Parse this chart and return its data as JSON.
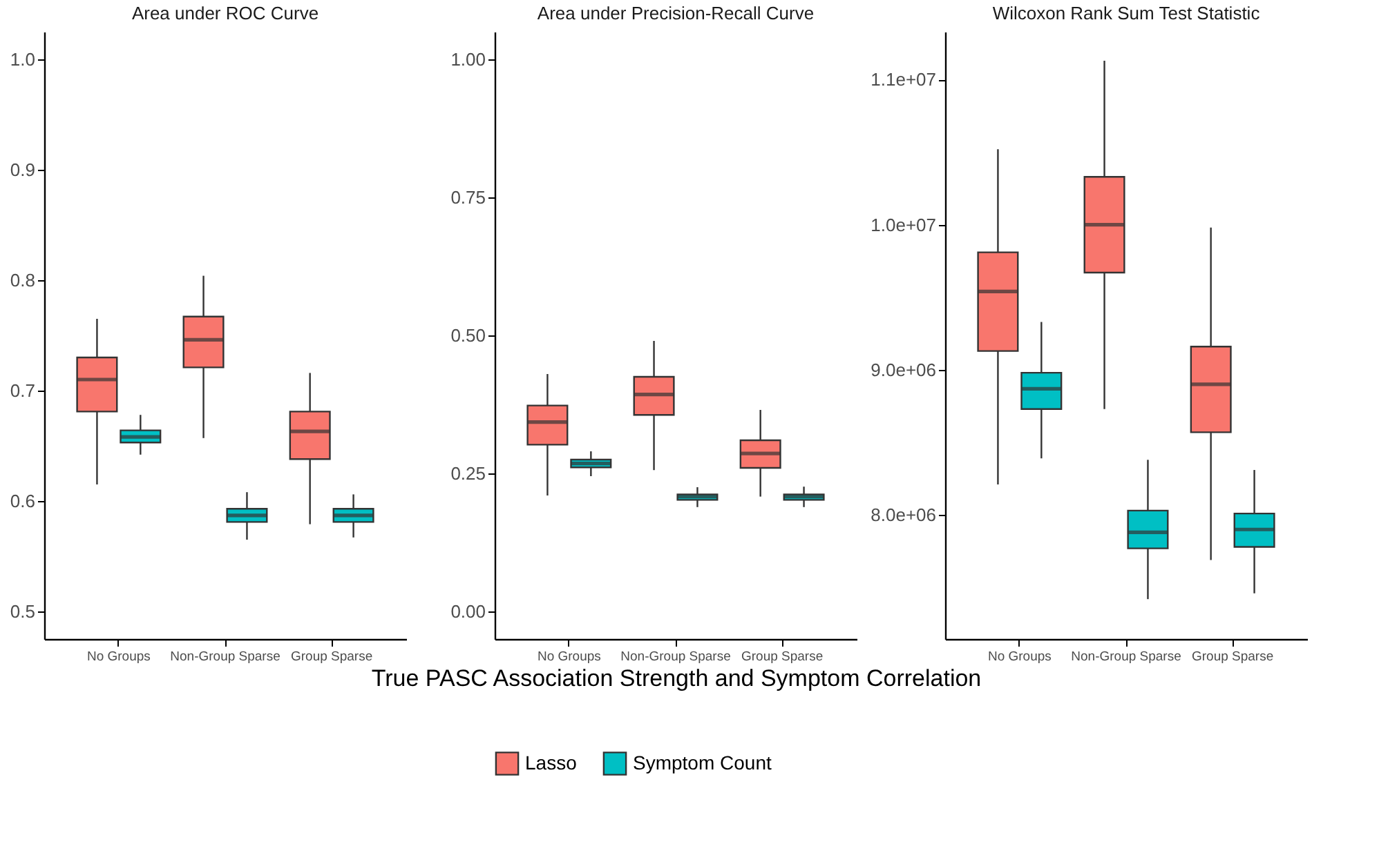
{
  "chart_data": [
    {
      "type": "box",
      "title": "Area under ROC Curve",
      "categories": [
        "No Groups",
        "Non-Group Sparse",
        "Group Sparse"
      ],
      "ylim": [
        0.475,
        1.025
      ],
      "yticks": [
        0.5,
        0.6,
        0.7,
        0.8,
        0.9,
        {
          "value": 1,
          "label": "1.0"
        }
      ],
      "series": [
        {
          "color": "#f8766d",
          "boxes": [
            {
              "low": 0.615,
              "q1": 0.681,
              "median": 0.71,
              "q3": 0.73,
              "high": 0.765
            },
            {
              "low": 0.657,
              "q1": 0.721,
              "median": 0.746,
              "q3": 0.767,
              "high": 0.804
            },
            {
              "low": 0.579,
              "q1": 0.638,
              "median": 0.663,
              "q3": 0.681,
              "high": 0.716
            }
          ]
        },
        {
          "color": "#00bfc4",
          "boxes": [
            {
              "low": 0.642,
              "q1": 0.653,
              "median": 0.658,
              "q3": 0.664,
              "high": 0.678
            },
            {
              "low": 0.565,
              "q1": 0.581,
              "median": 0.587,
              "q3": 0.593,
              "high": 0.608
            },
            {
              "low": 0.567,
              "q1": 0.581,
              "median": 0.587,
              "q3": 0.593,
              "high": 0.606
            }
          ]
        }
      ]
    },
    {
      "type": "box",
      "title": "Area under Precision-Recall Curve",
      "categories": [
        "No Groups",
        "Non-Group Sparse",
        "Group Sparse"
      ],
      "xlabel": "True PASC Association Strength and Symptom Correlation",
      "legend": "bottom",
      "ylim": [
        -0.05,
        1.05
      ],
      "yticks": [
        {
          "value": 0,
          "label": "0.00"
        },
        0.25,
        {
          "value": 0.5,
          "label": "0.50"
        },
        0.75,
        {
          "value": 1,
          "label": "1.00"
        }
      ],
      "series": [
        {
          "name": "Lasso",
          "color": "#f8766d",
          "boxes": [
            {
              "low": 0.21,
              "q1": 0.302,
              "median": 0.343,
              "q3": 0.373,
              "high": 0.43
            },
            {
              "low": 0.256,
              "q1": 0.356,
              "median": 0.393,
              "q3": 0.425,
              "high": 0.49
            },
            {
              "low": 0.208,
              "q1": 0.26,
              "median": 0.286,
              "q3": 0.31,
              "high": 0.365
            }
          ]
        },
        {
          "name": "Symptom Count",
          "color": "#00bfc4",
          "boxes": [
            {
              "low": 0.245,
              "q1": 0.261,
              "median": 0.268,
              "q3": 0.275,
              "high": 0.29
            },
            {
              "low": 0.189,
              "q1": 0.202,
              "median": 0.208,
              "q3": 0.212,
              "high": 0.225
            },
            {
              "low": 0.189,
              "q1": 0.202,
              "median": 0.208,
              "q3": 0.212,
              "high": 0.226
            }
          ]
        }
      ]
    },
    {
      "type": "box",
      "title": "Wilcoxon Rank Sum Test Statistic",
      "categories": [
        "No Groups",
        "Non-Group Sparse",
        "Group Sparse"
      ],
      "ylim": [
        7145000,
        11330000
      ],
      "yticks": [
        {
          "value": 8000000,
          "label": "8.0e+06"
        },
        {
          "value": 9000000,
          "label": "9.0e+06"
        },
        {
          "value": 10000000,
          "label": "1.0e+07"
        },
        {
          "value": 11000000,
          "label": "1.1e+07"
        }
      ],
      "series": [
        {
          "color": "#f8766d",
          "boxes": [
            {
              "low": 8210000,
              "q1": 9130000,
              "median": 9540000,
              "q3": 9810000,
              "high": 10520000
            },
            {
              "low": 8730000,
              "q1": 9670000,
              "median": 10000000,
              "q3": 10330000,
              "high": 11130000
            },
            {
              "low": 7690000,
              "q1": 8570000,
              "median": 8900000,
              "q3": 9160000,
              "high": 9980000
            }
          ]
        },
        {
          "color": "#00bfc4",
          "boxes": [
            {
              "low": 8390000,
              "q1": 8730000,
              "median": 8870000,
              "q3": 8980000,
              "high": 9330000
            },
            {
              "low": 7420000,
              "q1": 7770000,
              "median": 7880000,
              "q3": 8030000,
              "high": 8380000
            },
            {
              "low": 7460000,
              "q1": 7780000,
              "median": 7900000,
              "q3": 8010000,
              "high": 8310000
            }
          ]
        }
      ]
    }
  ]
}
